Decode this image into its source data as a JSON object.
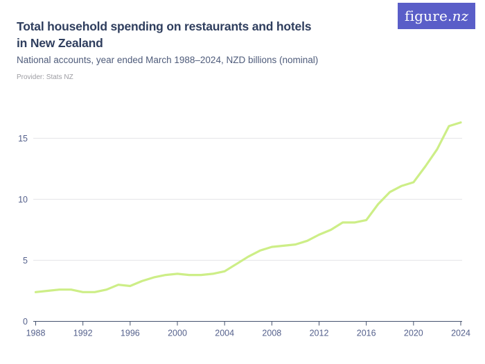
{
  "header": {
    "title_line1": "Total household spending on restaurants and hotels",
    "title_line2": "in New Zealand",
    "subtitle": "National accounts, year ended March 1988–2024, NZD billions (nominal)",
    "provider": "Provider: Stats NZ",
    "logo_text_main": "figure.",
    "logo_text_accent": "nz"
  },
  "colors": {
    "background": "#ffffff",
    "line": "#cdee87",
    "grid": "#e8e8ec",
    "axis": "#44516d",
    "tick_label": "#55618c",
    "title": "#2f3e5e",
    "subtitle": "#4e5b7a",
    "provider": "#9c9ca2",
    "logo_bg": "#5a5ec8",
    "logo_text": "#ffffff"
  },
  "chart_data": {
    "type": "line",
    "title": "Total household spending on restaurants and hotels in New Zealand",
    "subtitle": "National accounts, year ended March 1988–2024, NZD billions (nominal)",
    "provider": "Provider: Stats NZ",
    "xlabel": "",
    "ylabel": "NZD billions (nominal)",
    "x": [
      1988,
      1989,
      1990,
      1991,
      1992,
      1993,
      1994,
      1995,
      1996,
      1997,
      1998,
      1999,
      2000,
      2001,
      2002,
      2003,
      2004,
      2005,
      2006,
      2007,
      2008,
      2009,
      2010,
      2011,
      2012,
      2013,
      2014,
      2015,
      2016,
      2017,
      2018,
      2019,
      2020,
      2021,
      2022,
      2023,
      2024
    ],
    "values": [
      2.4,
      2.5,
      2.6,
      2.6,
      2.4,
      2.4,
      2.6,
      3.0,
      2.9,
      3.3,
      3.6,
      3.8,
      3.9,
      3.8,
      3.8,
      3.9,
      4.1,
      4.7,
      5.3,
      5.8,
      6.1,
      6.2,
      6.3,
      6.6,
      7.1,
      7.5,
      8.1,
      8.1,
      8.3,
      9.6,
      10.6,
      11.1,
      11.4,
      12.7,
      14.1,
      16.0,
      16.3
    ],
    "xticks": [
      1988,
      1992,
      1996,
      2000,
      2004,
      2008,
      2012,
      2016,
      2020,
      2024
    ],
    "yticks": [
      0,
      5,
      10,
      15
    ],
    "xlim": [
      1988,
      2024
    ],
    "ylim": [
      0,
      17.5
    ],
    "grid": "horizontal-only",
    "legend": "none"
  }
}
